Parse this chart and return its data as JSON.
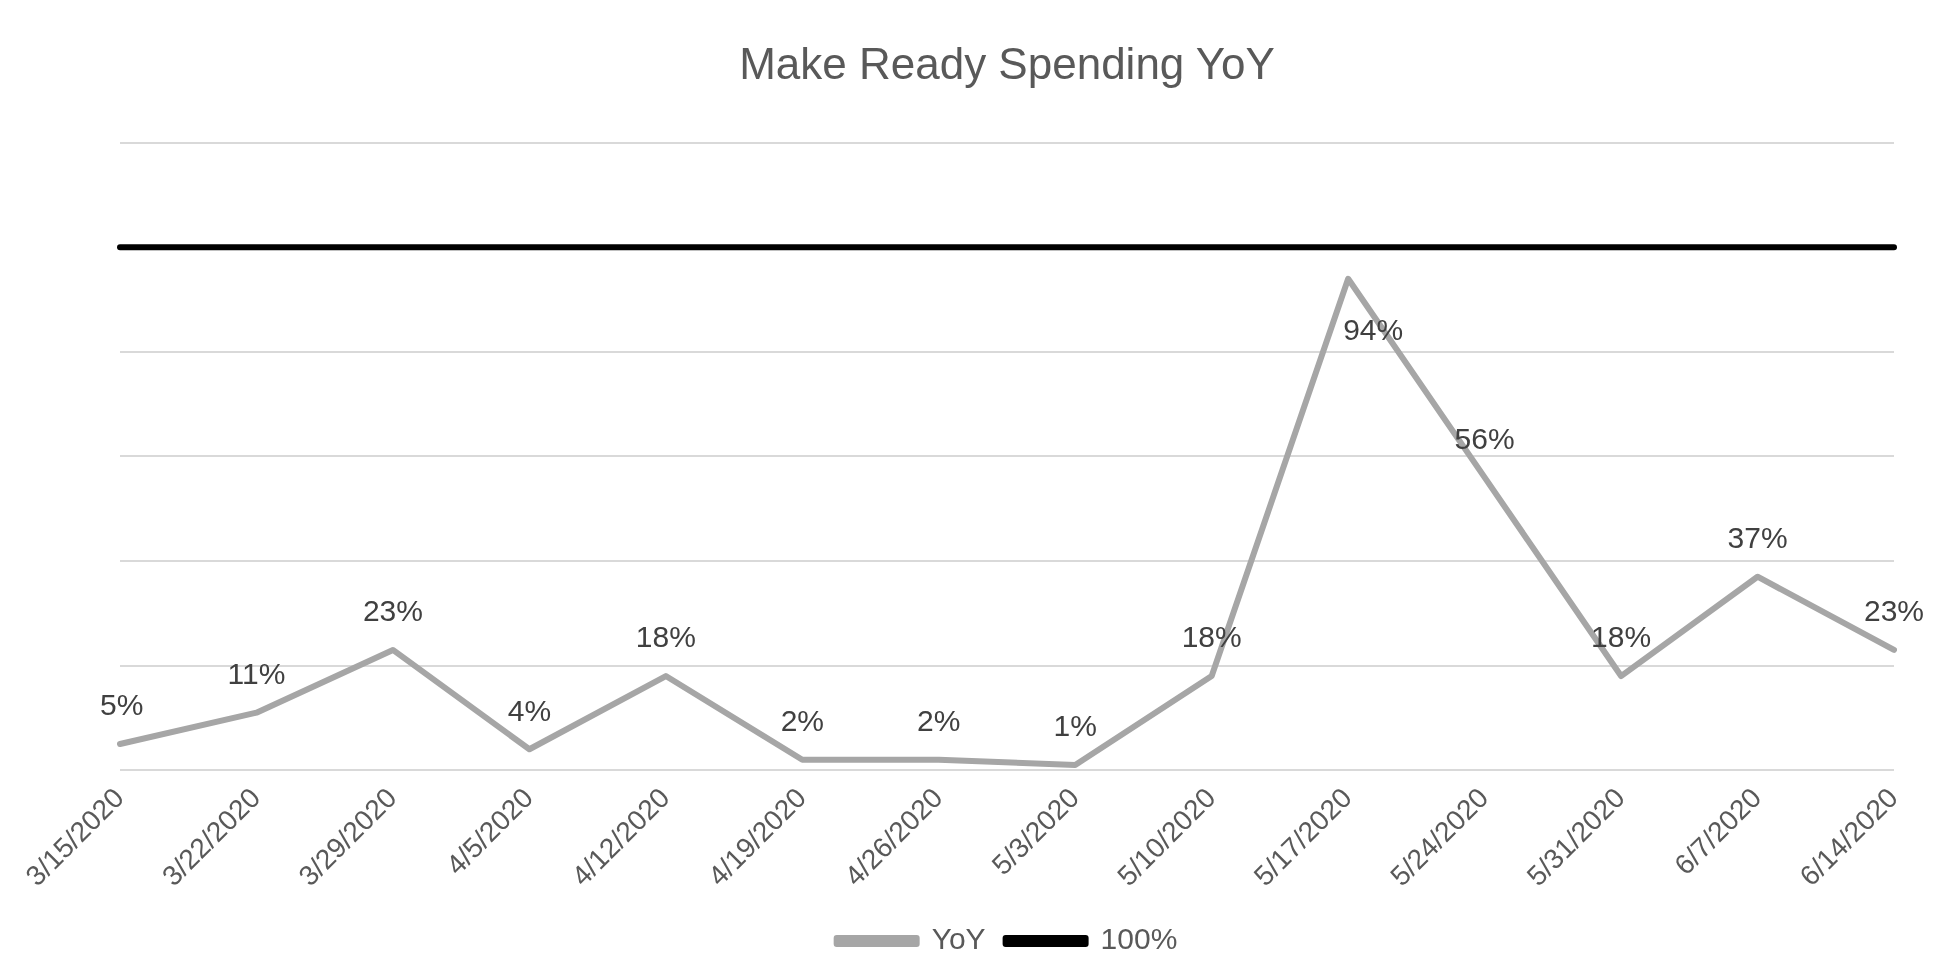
{
  "chart_data": {
    "type": "line",
    "title": "Make Ready Spending YoY",
    "categories": [
      "3/15/2020",
      "3/22/2020",
      "3/29/2020",
      "4/5/2020",
      "4/12/2020",
      "4/19/2020",
      "4/26/2020",
      "5/3/2020",
      "5/10/2020",
      "5/17/2020",
      "5/24/2020",
      "5/31/2020",
      "6/7/2020",
      "6/14/2020"
    ],
    "series": [
      {
        "name": "YoY",
        "color": "#a6a6a6",
        "values": [
          5,
          11,
          23,
          4,
          18,
          2,
          2,
          1,
          18,
          94,
          56,
          18,
          37,
          23
        ],
        "value_labels": [
          "5%",
          "11%",
          "23%",
          "4%",
          "18%",
          "2%",
          "2%",
          "1%",
          "18%",
          "94%",
          "56%",
          "18%",
          "37%",
          "23%"
        ]
      },
      {
        "name": "100%",
        "color": "#000000",
        "values": [
          100,
          100,
          100,
          100,
          100,
          100,
          100,
          100,
          100,
          100,
          100,
          100,
          100,
          100
        ]
      }
    ],
    "ylim": [
      0,
      120
    ],
    "yticks": [
      {
        "value": 0,
        "label": null
      },
      {
        "value": 20,
        "label": null
      },
      {
        "value": 40,
        "label": null
      },
      {
        "value": 60,
        "label": null
      },
      {
        "value": 80,
        "label": null
      },
      {
        "value": 120,
        "label": null
      }
    ],
    "tick_labels": "x",
    "grid": "y",
    "legend": "bottom",
    "marker": "none",
    "line_style": "solid"
  }
}
